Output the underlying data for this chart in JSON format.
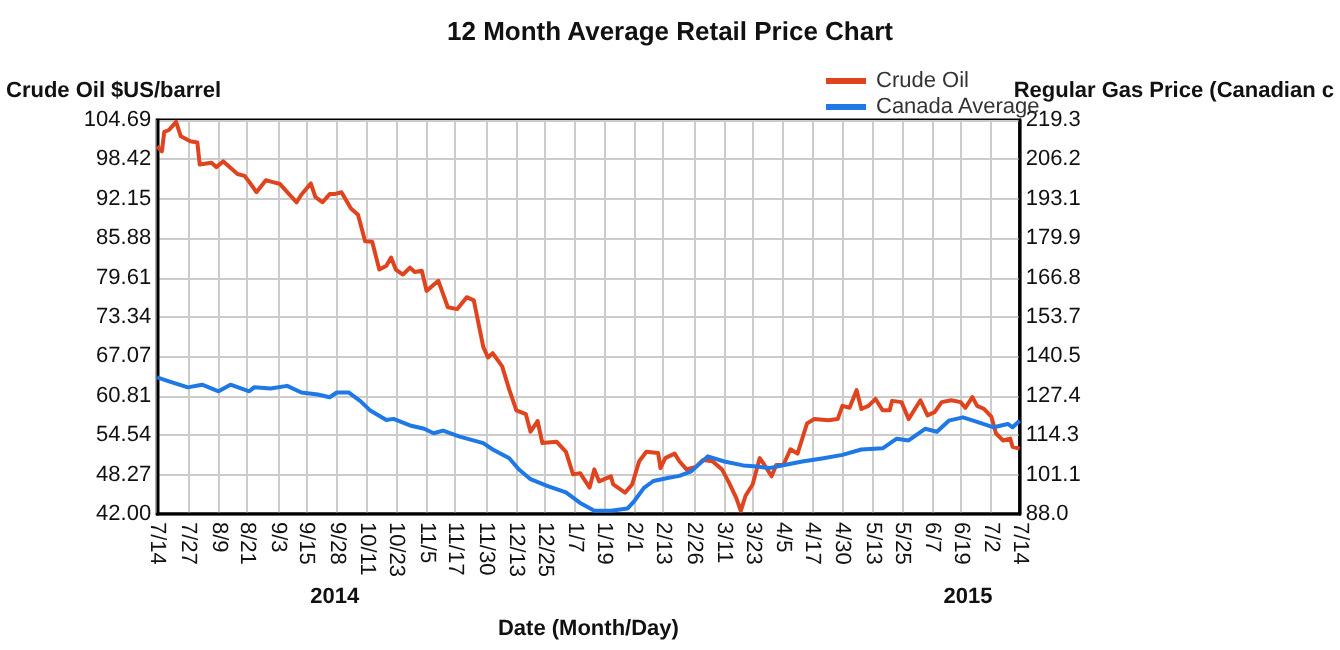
{
  "chart_data": {
    "type": "line",
    "title": "12 Month Average Retail Price Chart",
    "xlabel": "Date (Month/Day)",
    "ylabel": "Crude Oil $US/barrel",
    "y2label": "Regular Gas Price (Canadian c",
    "annotations": [
      "2014",
      "2015"
    ],
    "series": [
      {
        "name": "Crude Oil",
        "color": "#e0441e",
        "x": [
          "2014-07-14",
          "2014-07-16",
          "2014-07-17",
          "2014-07-19",
          "2014-07-22",
          "2014-07-24",
          "2014-07-28",
          "2014-07-31",
          "2014-08-01",
          "2014-08-06",
          "2014-08-08",
          "2014-08-11",
          "2014-08-17",
          "2014-08-20",
          "2014-08-23",
          "2014-08-25",
          "2014-08-29",
          "2014-09-01",
          "2014-09-04",
          "2014-09-09",
          "2014-09-11",
          "2014-09-13",
          "2014-09-17",
          "2014-09-19",
          "2014-09-22",
          "2014-09-25",
          "2014-09-27",
          "2014-09-30",
          "2014-10-04",
          "2014-10-07",
          "2014-10-10",
          "2014-10-13",
          "2014-10-16",
          "2014-10-19",
          "2014-10-21",
          "2014-10-23",
          "2014-10-26",
          "2014-10-29",
          "2014-10-31",
          "2014-11-03",
          "2014-11-05",
          "2014-11-10",
          "2014-11-14",
          "2014-11-18",
          "2014-11-22",
          "2014-11-25",
          "2014-11-27",
          "2014-11-29",
          "2014-12-01",
          "2014-12-03",
          "2014-12-07",
          "2014-12-10",
          "2014-12-13",
          "2014-12-17",
          "2014-12-19",
          "2014-12-22",
          "2014-12-24",
          "2014-12-30",
          "2015-01-03",
          "2015-01-06",
          "2015-01-09",
          "2015-01-13",
          "2015-01-15",
          "2015-01-17",
          "2015-01-22",
          "2015-01-23",
          "2015-01-28",
          "2015-01-31",
          "2015-02-03",
          "2015-02-06",
          "2015-02-11",
          "2015-02-12",
          "2015-02-14",
          "2015-02-18",
          "2015-02-20",
          "2015-02-23",
          "2015-02-27",
          "2015-03-02",
          "2015-03-06",
          "2015-03-10",
          "2015-03-13",
          "2015-03-16",
          "2015-03-18",
          "2015-03-20",
          "2015-03-23",
          "2015-03-26",
          "2015-03-28",
          "2015-03-31",
          "2015-04-02",
          "2015-04-05",
          "2015-04-08",
          "2015-04-11",
          "2015-04-15",
          "2015-04-18",
          "2015-04-24",
          "2015-04-28",
          "2015-04-30",
          "2015-05-03",
          "2015-05-06",
          "2015-05-08",
          "2015-05-11",
          "2015-05-14",
          "2015-05-17",
          "2015-05-20",
          "2015-05-21",
          "2015-05-25",
          "2015-05-28",
          "2015-05-31",
          "2015-06-02",
          "2015-06-05",
          "2015-06-08",
          "2015-06-11",
          "2015-06-15",
          "2015-06-19",
          "2015-06-21",
          "2015-06-24",
          "2015-06-26",
          "2015-06-29",
          "2015-07-02",
          "2015-07-04",
          "2015-07-07",
          "2015-07-10",
          "2015-07-11",
          "2015-07-14"
        ],
        "values": [
          100.5,
          99.7,
          102.8,
          103.1,
          104.4,
          102.1,
          101.3,
          101.1,
          97.6,
          97.9,
          97.2,
          98.1,
          96.1,
          95.8,
          94.3,
          93.2,
          95.1,
          94.8,
          94.5,
          92.4,
          91.6,
          92.8,
          94.6,
          92.4,
          91.6,
          92.9,
          92.9,
          93.2,
          90.6,
          89.6,
          85.4,
          85.3,
          80.9,
          81.5,
          82.8,
          80.9,
          80.1,
          81.2,
          80.5,
          80.7,
          77.5,
          79.1,
          74.9,
          74.6,
          76.5,
          76.0,
          72.3,
          68.6,
          66.9,
          67.6,
          65.5,
          61.8,
          58.5,
          57.9,
          55.1,
          56.8,
          53.3,
          53.5,
          51.9,
          48.3,
          48.5,
          46.2,
          49.1,
          47.2,
          48.0,
          46.7,
          45.4,
          46.7,
          50.4,
          51.9,
          51.7,
          49.3,
          50.9,
          51.6,
          50.4,
          49.1,
          49.5,
          50.6,
          50.4,
          49.1,
          47.0,
          44.6,
          42.5,
          44.9,
          46.7,
          50.9,
          49.8,
          48.0,
          49.8,
          49.8,
          52.3,
          51.6,
          56.4,
          57.1,
          56.9,
          57.1,
          59.2,
          58.9,
          61.7,
          58.7,
          59.2,
          60.3,
          58.5,
          58.5,
          60.0,
          59.8,
          57.1,
          58.9,
          60.1,
          57.7,
          58.2,
          59.8,
          60.1,
          59.8,
          58.9,
          60.6,
          59.2,
          58.7,
          57.5,
          54.8,
          53.7,
          54.0,
          52.7,
          52.4
        ]
      },
      {
        "name": "Canada Average",
        "color": "#1e78e6",
        "axis": "y2",
        "x": [
          "2014-07-14",
          "2014-07-19",
          "2014-07-27",
          "2014-08-02",
          "2014-08-09",
          "2014-08-14",
          "2014-08-22",
          "2014-08-24",
          "2014-08-31",
          "2014-09-07",
          "2014-09-13",
          "2014-09-20",
          "2014-09-25",
          "2014-09-28",
          "2014-10-03",
          "2014-10-08",
          "2014-10-12",
          "2014-10-19",
          "2014-10-22",
          "2014-10-29",
          "2014-11-04",
          "2014-11-08",
          "2014-11-12",
          "2014-11-19",
          "2014-11-29",
          "2014-12-03",
          "2014-12-10",
          "2014-12-14",
          "2014-12-19",
          "2014-12-26",
          "2015-01-03",
          "2015-01-09",
          "2015-01-15",
          "2015-01-22",
          "2015-01-29",
          "2015-02-01",
          "2015-02-05",
          "2015-02-09",
          "2015-02-15",
          "2015-02-20",
          "2015-02-25",
          "2015-03-04",
          "2015-03-11",
          "2015-03-19",
          "2015-03-25",
          "2015-03-30",
          "2015-04-06",
          "2015-04-13",
          "2015-04-22",
          "2015-04-30",
          "2015-05-08",
          "2015-05-17",
          "2015-05-23",
          "2015-05-28",
          "2015-06-04",
          "2015-06-09",
          "2015-06-14",
          "2015-06-20",
          "2015-06-26",
          "2015-07-03",
          "2015-07-09",
          "2015-07-11",
          "2015-07-14"
        ],
        "values": [
          133.5,
          132.2,
          130.2,
          131.1,
          128.9,
          131.1,
          128.9,
          130.2,
          129.8,
          130.7,
          128.5,
          127.8,
          126.9,
          128.5,
          128.5,
          125.6,
          122.6,
          119.3,
          119.7,
          117.5,
          116.4,
          114.9,
          115.8,
          113.8,
          111.6,
          109.5,
          106.6,
          102.9,
          99.6,
          97.4,
          95.2,
          91.7,
          89.1,
          89.1,
          89.8,
          92.4,
          96.7,
          99.0,
          100.0,
          100.7,
          102.2,
          107.2,
          105.5,
          104.2,
          103.8,
          103.3,
          104.4,
          105.5,
          106.6,
          107.7,
          109.5,
          109.9,
          113.1,
          112.5,
          116.4,
          115.4,
          119.1,
          120.2,
          118.7,
          116.9,
          118.0,
          116.9,
          119.1
        ]
      }
    ],
    "xlim": [
      "2014-07-14",
      "2015-07-14"
    ],
    "xticks": [
      {
        "value": "2014-07-14",
        "label": "7/14"
      },
      {
        "value": "2014-07-27",
        "label": "7/27"
      },
      {
        "value": "2014-08-09",
        "label": "8/9"
      },
      {
        "value": "2014-08-21",
        "label": "8/21"
      },
      {
        "value": "2014-09-03",
        "label": "9/3"
      },
      {
        "value": "2014-09-15",
        "label": "9/15"
      },
      {
        "value": "2014-09-28",
        "label": "9/28"
      },
      {
        "value": "2014-10-11",
        "label": "10/11"
      },
      {
        "value": "2014-10-23",
        "label": "10/23"
      },
      {
        "value": "2014-11-05",
        "label": "11/5"
      },
      {
        "value": "2014-11-17",
        "label": "11/17"
      },
      {
        "value": "2014-11-30",
        "label": "11/30"
      },
      {
        "value": "2014-12-13",
        "label": "12/13"
      },
      {
        "value": "2014-12-25",
        "label": "12/25"
      },
      {
        "value": "2015-01-07",
        "label": "1/7"
      },
      {
        "value": "2015-01-19",
        "label": "1/19"
      },
      {
        "value": "2015-02-01",
        "label": "2/1"
      },
      {
        "value": "2015-02-13",
        "label": "2/13"
      },
      {
        "value": "2015-02-26",
        "label": "2/26"
      },
      {
        "value": "2015-03-11",
        "label": "3/11"
      },
      {
        "value": "2015-03-23",
        "label": "3/23"
      },
      {
        "value": "2015-04-05",
        "label": "4/5"
      },
      {
        "value": "2015-04-17",
        "label": "4/17"
      },
      {
        "value": "2015-04-30",
        "label": "4/30"
      },
      {
        "value": "2015-05-13",
        "label": "5/13"
      },
      {
        "value": "2015-05-25",
        "label": "5/25"
      },
      {
        "value": "2015-06-07",
        "label": "6/7"
      },
      {
        "value": "2015-06-19",
        "label": "6/19"
      },
      {
        "value": "2015-07-02",
        "label": "7/2"
      },
      {
        "value": "2015-07-14",
        "label": "7/14"
      }
    ],
    "ylim": [
      42,
      104.69
    ],
    "yticks": [
      {
        "value": 42,
        "label": "42.00"
      },
      48.27,
      54.54,
      60.81,
      67.07,
      73.34,
      79.61,
      85.88,
      92.15,
      98.42,
      104.69
    ],
    "y2lim": [
      88,
      219.3
    ],
    "y2ticks": [
      {
        "value": 88,
        "label": "88.0"
      },
      101.1,
      114.3,
      127.4,
      140.5,
      153.7,
      166.8,
      179.9,
      193.1,
      206.2,
      219.3
    ],
    "grid": true,
    "legend": "top",
    "marker": "none"
  }
}
